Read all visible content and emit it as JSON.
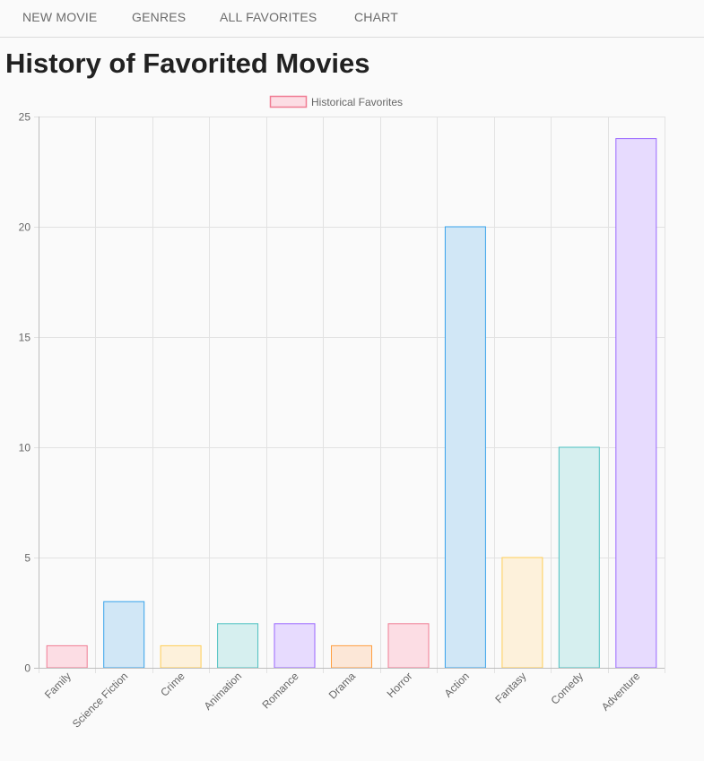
{
  "nav": {
    "items": [
      {
        "label": "NEW MOVIE"
      },
      {
        "label": "GENRES"
      },
      {
        "label": "ALL FAVORITES"
      },
      {
        "label": "CHART"
      }
    ]
  },
  "page": {
    "title": "History of Favorited Movies"
  },
  "chart_data": {
    "type": "bar",
    "categories": [
      "Family",
      "Science Fiction",
      "Crime",
      "Animation",
      "Romance",
      "Drama",
      "Horror",
      "Action",
      "Fantasy",
      "Comedy",
      "Adventure"
    ],
    "series": [
      {
        "name": "Historical Favorites",
        "values": [
          1,
          3,
          1,
          2,
          2,
          1,
          2,
          20,
          5,
          10,
          24
        ]
      }
    ],
    "ylim": [
      0,
      25
    ],
    "yticks": [
      0,
      5,
      10,
      15,
      20,
      25
    ],
    "grid": true,
    "legend": "top-center",
    "colors": {
      "fills": [
        "#fcdde4",
        "#d1e7f6",
        "#fdf1db",
        "#d6efef",
        "#e7dbfe",
        "#fce7d7",
        "#fcdde4",
        "#d1e7f6",
        "#fdf1db",
        "#d6efef",
        "#e7dbfe"
      ],
      "borders": [
        "#f07c93",
        "#36a2eb",
        "#ffce56",
        "#4bc0c0",
        "#9966ff",
        "#ff9f40",
        "#f07c93",
        "#36a2eb",
        "#ffce56",
        "#4bc0c0",
        "#9966ff"
      ],
      "legend_fill": "#fcdde4",
      "legend_border": "#f07c93"
    }
  }
}
